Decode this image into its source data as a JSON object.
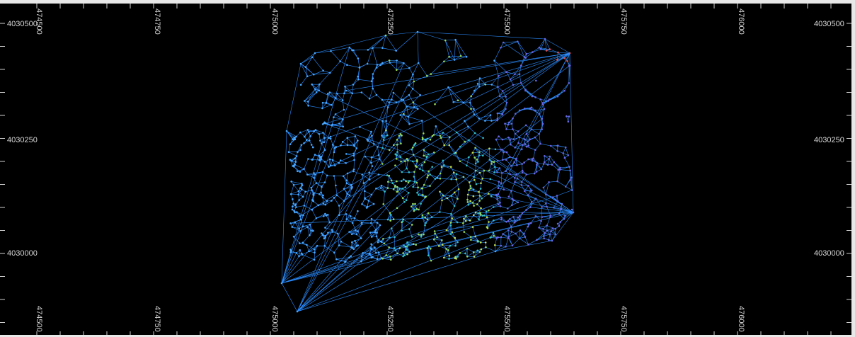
{
  "map": {
    "x_ticks_top": [
      "474500",
      "474750",
      "475000",
      "475250",
      "475500",
      "475750",
      "476000"
    ],
    "x_ticks_bottom": [
      "474500",
      "474750",
      "475000",
      "475250",
      "475500",
      "475750",
      "476000"
    ],
    "y_ticks_left": [
      "4030500",
      "4030250",
      "4030000"
    ],
    "y_ticks_right": [
      "4030500",
      "4030250",
      "4030000"
    ],
    "background_color": "#000000",
    "mesh_color": "#2a8cff",
    "node_colors": [
      "#4aa8ff",
      "#34c3c8",
      "#9bdc5a",
      "#c8e04a",
      "#6a66e6",
      "#e05050"
    ]
  }
}
